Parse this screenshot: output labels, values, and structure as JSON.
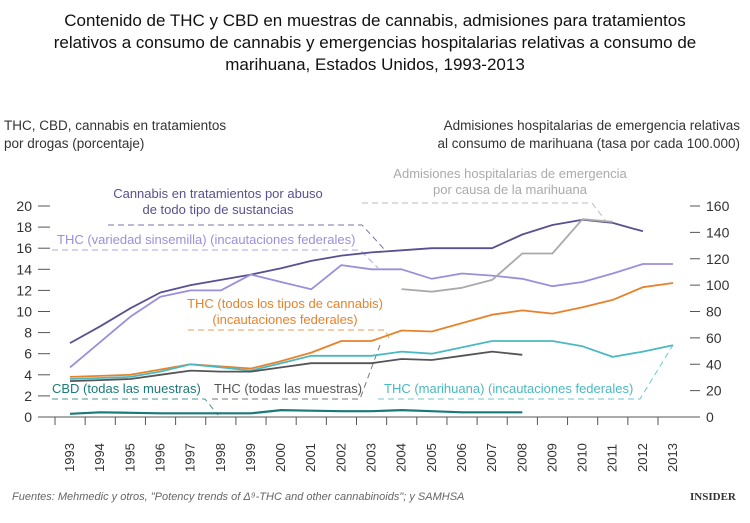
{
  "chart_data": {
    "type": "line",
    "title": [
      "Contenido de THC y CBD en muestras de cannabis, admisiones para tratamientos",
      "relativos a consumo de cannabis y emergencias hospitalarias relativas a consumo de",
      "marihuana, Estados Unidos, 1993-2013"
    ],
    "ylabel_left": [
      "THC, CBD, cannabis en tratamientos",
      "por drogas (porcentaje)"
    ],
    "ylabel_right": [
      "Admisiones hospitalarias de emergencia relativas",
      "al consumo de marihuana (tasa por cada 100.000)"
    ],
    "ylim_left": [
      0,
      20
    ],
    "ylim_right": [
      0,
      160
    ],
    "yticks_left": [
      "0",
      "2",
      "4",
      "6",
      "8",
      "10",
      "12",
      "14",
      "16",
      "18",
      "20"
    ],
    "yticks_right": [
      "0",
      "20",
      "40",
      "60",
      "80",
      "100",
      "120",
      "140",
      "160"
    ],
    "x": [
      "1993",
      "1994",
      "1995",
      "1996",
      "1997",
      "1998",
      "1999",
      "2000",
      "2001",
      "2002",
      "2003",
      "2004",
      "2005",
      "2006",
      "2007",
      "2008",
      "2009",
      "2010",
      "2011",
      "2012",
      "2013"
    ],
    "grid": false,
    "series": [
      {
        "name": [
          "Cannabis en tratamientos por abuso",
          "de todo tipo de sustancias"
        ],
        "axis": "left",
        "color": "#5b4f8f",
        "values": [
          7.0,
          8.6,
          10.3,
          11.8,
          12.5,
          13.0,
          13.5,
          14.1,
          14.8,
          15.3,
          15.6,
          15.8,
          16.0,
          16.0,
          16.0,
          17.3,
          18.2,
          18.7,
          18.4,
          17.6,
          null
        ]
      },
      {
        "name": [
          "THC (variedad sinsemilla) (incautaciones federales)"
        ],
        "axis": "left",
        "color": "#9b8fdc",
        "values": [
          4.7,
          7.1,
          9.5,
          11.4,
          12.0,
          12.0,
          13.5,
          12.8,
          12.1,
          14.4,
          14.0,
          14.0,
          13.1,
          13.6,
          13.4,
          13.1,
          12.4,
          12.8,
          13.6,
          14.5,
          14.5
        ]
      },
      {
        "name": [
          "Admisiones hospitalarias de emergencia",
          "por causa de la marihuana"
        ],
        "axis": "right",
        "color": "#aaaaaa",
        "values": [
          null,
          null,
          null,
          null,
          null,
          null,
          null,
          null,
          null,
          null,
          null,
          97,
          95,
          98,
          104,
          124,
          124,
          150,
          148,
          null,
          null
        ]
      },
      {
        "name": [
          "THC (todos los tipos de cannabis)",
          "(incautaciones federales)"
        ],
        "axis": "left",
        "color": "#e8822a",
        "values": [
          3.8,
          3.9,
          4.0,
          4.5,
          5.0,
          4.8,
          4.6,
          5.3,
          6.1,
          7.2,
          7.2,
          8.2,
          8.1,
          8.9,
          9.7,
          10.1,
          9.8,
          10.4,
          11.1,
          12.3,
          12.7
        ]
      },
      {
        "name": [
          "THC (marihuana) (incautaciones federales)"
        ],
        "axis": "left",
        "color": "#4bb9c0",
        "values": [
          3.6,
          3.7,
          3.8,
          4.3,
          5.0,
          4.7,
          4.4,
          5.1,
          5.8,
          5.8,
          5.8,
          6.2,
          6.0,
          6.6,
          7.2,
          7.2,
          7.2,
          6.7,
          5.7,
          6.2,
          6.8
        ]
      },
      {
        "name": [
          "THC (todas las muestras)"
        ],
        "axis": "left",
        "color": "#555555",
        "values": [
          3.4,
          3.5,
          3.6,
          4.0,
          4.4,
          4.3,
          4.3,
          4.7,
          5.1,
          5.1,
          5.1,
          5.5,
          5.4,
          5.8,
          6.2,
          5.9,
          null,
          null,
          null,
          null,
          null
        ]
      },
      {
        "name": [
          "CBD (todas las muestras)"
        ],
        "axis": "left",
        "color": "#1a7a7a",
        "values": [
          0.3,
          0.45,
          0.4,
          0.35,
          0.35,
          0.35,
          0.35,
          0.65,
          0.6,
          0.55,
          0.55,
          0.65,
          0.55,
          0.45,
          0.45,
          0.45,
          null,
          null,
          null,
          null,
          null
        ]
      }
    ]
  },
  "footer": {
    "source": "Fuentes: Mehmedic y otros, \"Potency trends of Δ⁹-THC and other cannabinoids\"; y SAMHSA",
    "logo": "INSIDER"
  }
}
